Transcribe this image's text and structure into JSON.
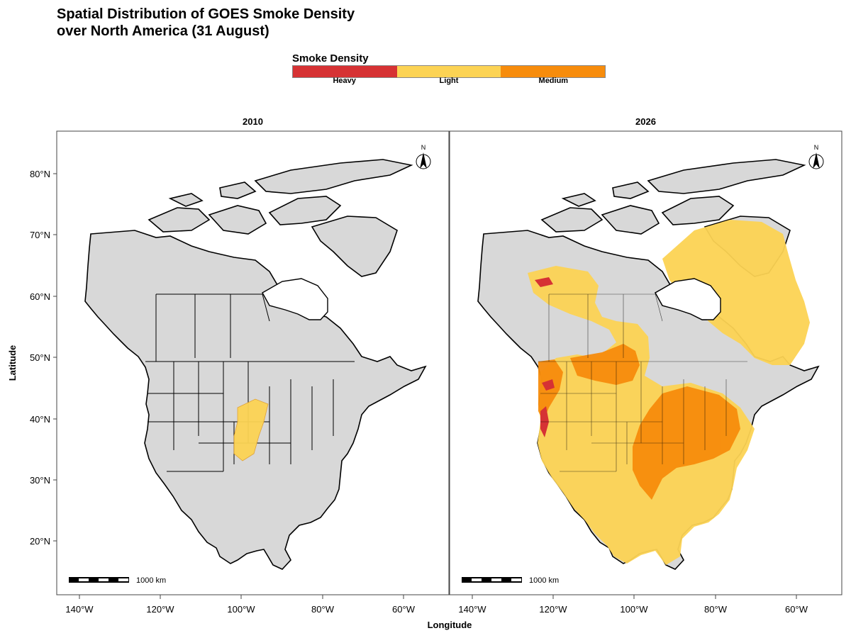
{
  "title_line1": "Spatial Distribution of GOES Smoke Density",
  "title_line2": "over North America (31 August)",
  "legend": {
    "title": "Smoke Density",
    "items": [
      {
        "label": "Heavy",
        "color": "#d63234"
      },
      {
        "label": "Light",
        "color": "#fcd354"
      },
      {
        "label": "Medium",
        "color": "#f78c0c"
      }
    ]
  },
  "panels": [
    {
      "year": "2010"
    },
    {
      "year": "2026"
    }
  ],
  "x_ticks": [
    "140°W",
    "120°W",
    "100°W",
    "80°W",
    "60°W"
  ],
  "y_ticks": [
    "20°N",
    "30°N",
    "40°N",
    "50°N",
    "60°N",
    "70°N",
    "80°N"
  ],
  "x_label": "Longitude",
  "y_label": "Latitude",
  "scale_bar_label": "1000 km",
  "north_label": "N",
  "colors": {
    "land": "#d8d8d8",
    "water": "#ffffff",
    "border": "#000000"
  }
}
